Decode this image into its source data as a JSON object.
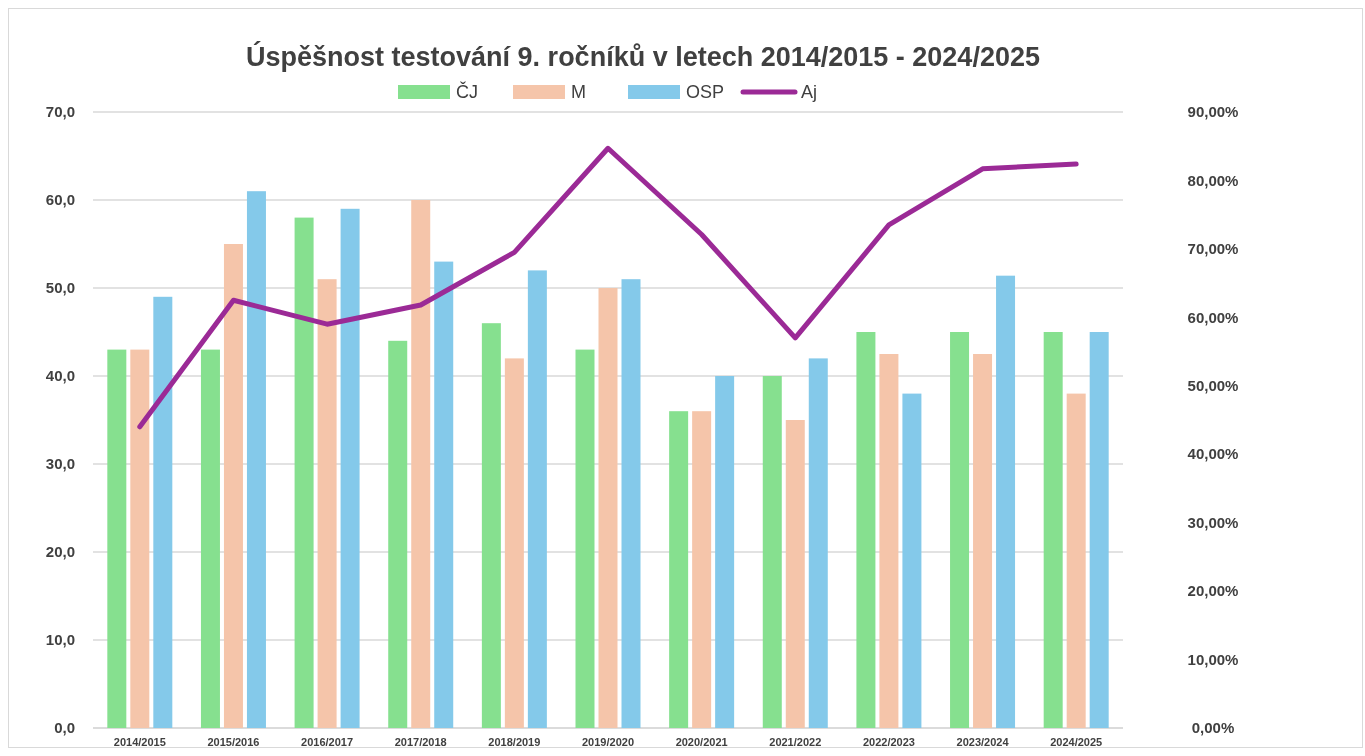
{
  "chart_data": {
    "type": "bar",
    "title": "Úspěšnost testování 9. ročníků v letech 2014/2015 - 2024/2025",
    "categories": [
      "2014/2015",
      "2015/2016",
      "2016/2017",
      "2017/2018",
      "2018/2019",
      "2019/2020",
      "2020/2021",
      "2021/2022",
      "2022/2023",
      "2023/2024",
      "2024/2025"
    ],
    "series": [
      {
        "name": "ČJ",
        "color": "#86e08f",
        "values": [
          43,
          43,
          58,
          44,
          46,
          43,
          36,
          40,
          45,
          45,
          45
        ]
      },
      {
        "name": "M",
        "color": "#f5c5aa",
        "values": [
          43,
          55,
          51,
          60,
          42,
          50,
          36,
          35,
          42.5,
          42.5,
          38
        ]
      },
      {
        "name": "OSP",
        "color": "#84c9ea",
        "values": [
          49,
          61,
          59,
          53,
          52,
          51,
          40,
          42,
          38,
          51.4,
          45
        ]
      },
      {
        "name": "Aj",
        "type": "line",
        "axis": "y2",
        "color": "#9b2a96",
        "values": [
          44.0,
          62.5,
          59.0,
          61.8,
          69.5,
          84.7,
          72.1,
          57.0,
          73.5,
          81.7,
          82.4
        ]
      }
    ],
    "ylim": [
      0,
      70
    ],
    "yticks": [
      {
        "value": 0,
        "label": "0,0"
      },
      {
        "value": 10,
        "label": "10,0"
      },
      {
        "value": 20,
        "label": "20,0"
      },
      {
        "value": 30,
        "label": "30,0"
      },
      {
        "value": 40,
        "label": "40,0"
      },
      {
        "value": 50,
        "label": "50,0"
      },
      {
        "value": 60,
        "label": "60,0"
      },
      {
        "value": 70,
        "label": "70,0"
      }
    ],
    "y2lim": [
      0,
      90
    ],
    "y2ticks": [
      {
        "value": 0,
        "label": "0,00%"
      },
      {
        "value": 10,
        "label": "10,00%"
      },
      {
        "value": 20,
        "label": "20,00%"
      },
      {
        "value": 30,
        "label": "30,00%"
      },
      {
        "value": 40,
        "label": "40,00%"
      },
      {
        "value": 50,
        "label": "50,00%"
      },
      {
        "value": 60,
        "label": "60,00%"
      },
      {
        "value": 70,
        "label": "70,00%"
      },
      {
        "value": 80,
        "label": "80,00%"
      },
      {
        "value": 90,
        "label": "90,00%"
      }
    ],
    "grid": "y",
    "legend": "top",
    "marker": "none",
    "line_style": "solid"
  }
}
